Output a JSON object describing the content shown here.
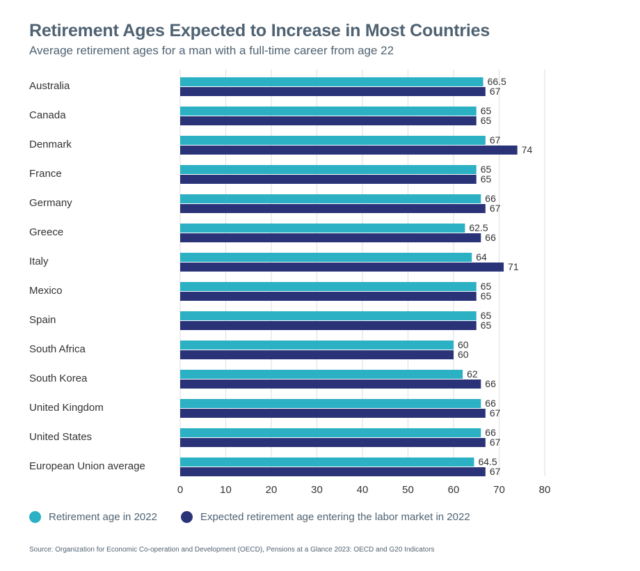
{
  "title": "Retirement Ages Expected to Increase in Most Countries",
  "subtitle": "Average retirement ages for a man with a full-time career from age 22",
  "source": "Source: Organization for Economic Co-operation and Development (OECD), Pensions at a Glance 2023: OECD and G20 Indicators",
  "colors": {
    "series1": "#2bb0c4",
    "series2": "#2b3378",
    "grid": "#dedede",
    "text": "#333333",
    "title": "#4f6272"
  },
  "legend": [
    {
      "label": "Retirement age in 2022"
    },
    {
      "label": "Expected retirement age entering the labor market in 2022"
    }
  ],
  "chart_data": {
    "type": "bar",
    "orientation": "horizontal",
    "title": "Retirement Ages Expected to Increase in Most Countries",
    "subtitle": "Average retirement ages for a man with a full-time career from age 22",
    "categories": [
      "Australia",
      "Canada",
      "Denmark",
      "France",
      "Germany",
      "Greece",
      "Italy",
      "Mexico",
      "Spain",
      "South Africa",
      "South Korea",
      "United Kingdom",
      "United States",
      "European Union average"
    ],
    "series": [
      {
        "name": "Retirement age in 2022",
        "values": [
          66.5,
          65,
          67,
          65,
          66,
          62.5,
          64,
          65,
          65,
          60,
          62,
          66,
          66,
          64.5
        ]
      },
      {
        "name": "Expected retirement age entering the labor market in 2022",
        "values": [
          67,
          65,
          74,
          65,
          67,
          66,
          71,
          65,
          65,
          60,
          66,
          67,
          67,
          67
        ]
      }
    ],
    "xlim": [
      0,
      80
    ],
    "xticks": [
      0,
      10,
      20,
      30,
      40,
      50,
      60,
      70,
      80
    ],
    "grid": true,
    "legend_position": "bottom-left"
  }
}
